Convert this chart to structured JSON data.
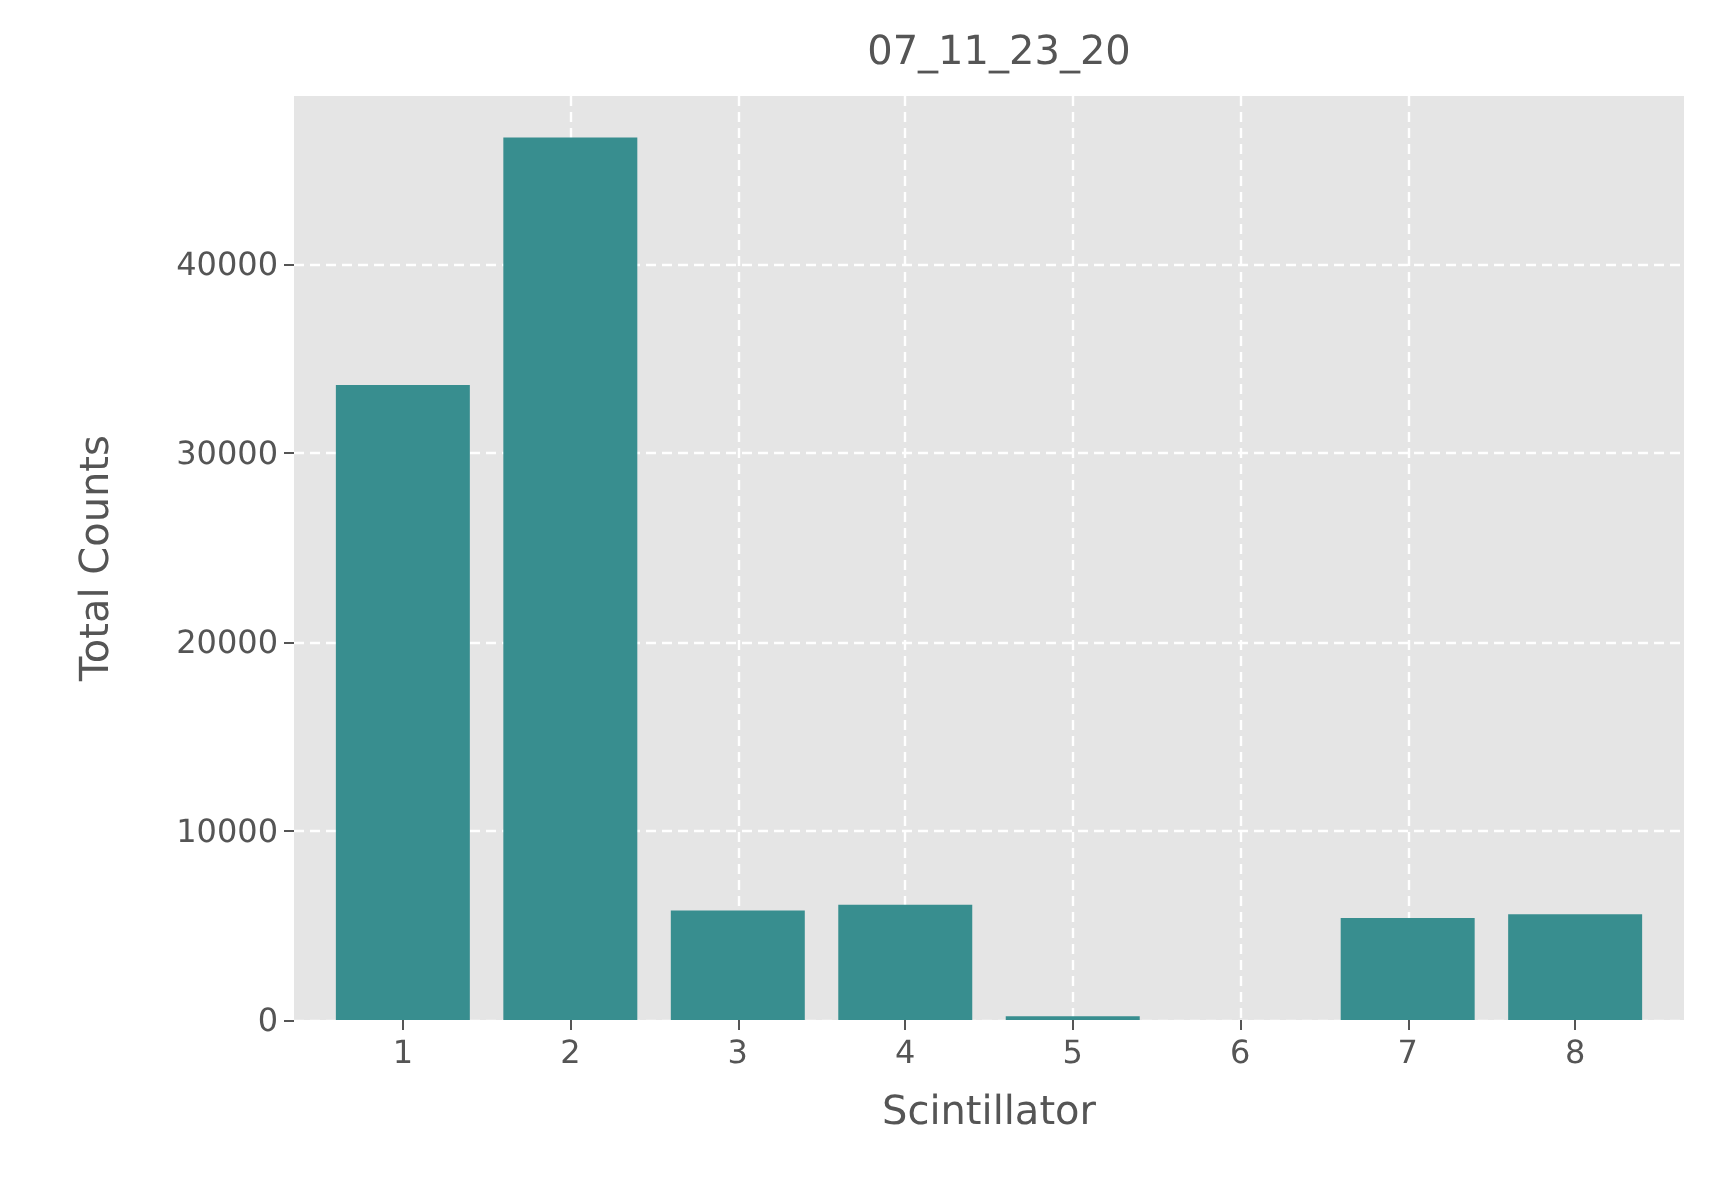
{
  "chart_data": {
    "type": "bar",
    "title": "07_11_23_20",
    "xlabel": "Scintillator",
    "ylabel": "Total Counts",
    "x": [
      1,
      2,
      3,
      4,
      5,
      6,
      7,
      8
    ],
    "values": [
      33600,
      46700,
      5800,
      6100,
      200,
      0,
      5400,
      5600
    ],
    "color": "#388e8f",
    "xlim": [
      0.35,
      8.65
    ],
    "xticks": [
      1,
      2,
      3,
      4,
      5,
      6,
      7,
      8
    ],
    "ylim": [
      0,
      48900
    ],
    "yticks": [
      0,
      10000,
      20000,
      30000,
      40000
    ],
    "grid": true
  }
}
